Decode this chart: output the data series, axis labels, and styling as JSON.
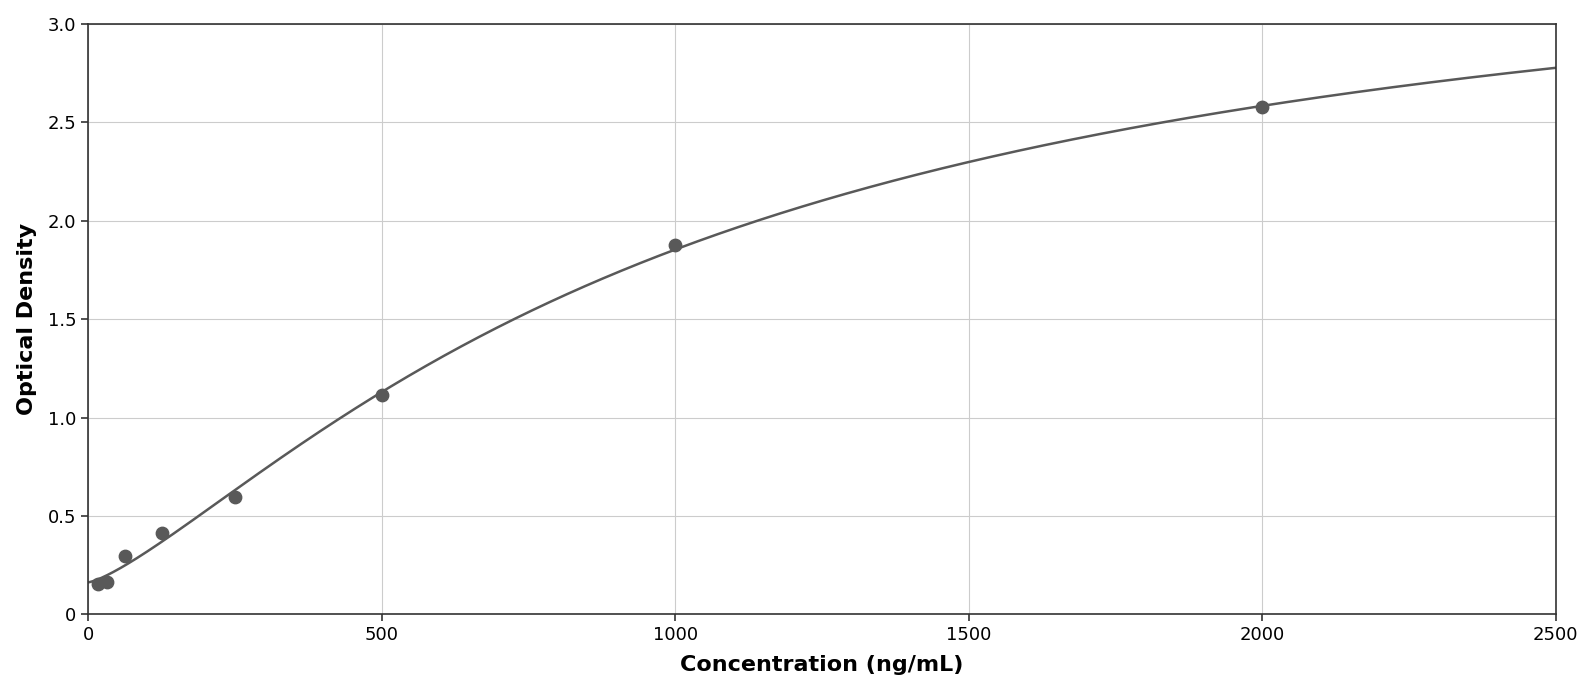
{
  "x_data": [
    15.625,
    31.25,
    62.5,
    125,
    250,
    500,
    1000,
    2000
  ],
  "y_data": [
    0.155,
    0.165,
    0.295,
    0.415,
    0.595,
    1.115,
    1.875,
    2.575
  ],
  "point_color": "#595959",
  "line_color": "#595959",
  "xlabel": "Concentration (ng/mL)",
  "ylabel": "Optical Density",
  "xlim": [
    0,
    2500
  ],
  "ylim": [
    0,
    3
  ],
  "xticks": [
    0,
    500,
    1000,
    1500,
    2000,
    2500
  ],
  "yticks": [
    0,
    0.5,
    1.0,
    1.5,
    2.0,
    2.5,
    3.0
  ],
  "grid_color": "#cccccc",
  "background_color": "#ffffff",
  "border_color": "#333333",
  "xlabel_fontsize": 16,
  "ylabel_fontsize": 16,
  "tick_fontsize": 13,
  "point_size": 80,
  "line_width": 1.8
}
